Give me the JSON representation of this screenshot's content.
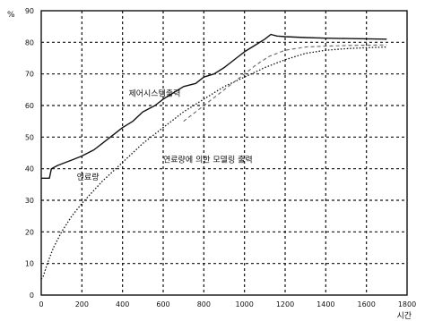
{
  "chart_data": {
    "type": "line",
    "title": "",
    "xlabel": "시간",
    "ylabel": "%",
    "xlim": [
      0,
      1800
    ],
    "ylim": [
      0,
      90
    ],
    "xticks": [
      0,
      200,
      400,
      600,
      800,
      1000,
      1200,
      1400,
      1600,
      1800
    ],
    "yticks": [
      0,
      10,
      20,
      30,
      40,
      50,
      60,
      70,
      80,
      90
    ],
    "grid": true,
    "series": [
      {
        "name": "제어시스템출력",
        "color": "#111111",
        "style": "solid",
        "width": 1.4,
        "x": [
          0,
          40,
          50,
          80,
          120,
          160,
          200,
          260,
          300,
          360,
          400,
          450,
          500,
          560,
          600,
          650,
          700,
          760,
          800,
          850,
          900,
          960,
          1000,
          1050,
          1100,
          1130,
          1160,
          1200,
          1300,
          1400,
          1500,
          1600,
          1700
        ],
        "y": [
          37,
          37,
          40,
          41,
          42,
          43,
          44,
          46,
          48,
          51,
          53,
          55,
          58,
          60,
          62,
          64,
          66,
          67,
          69,
          70,
          72,
          75,
          77,
          79,
          81,
          82.5,
          82,
          81.8,
          81.5,
          81.3,
          81.2,
          81.1,
          81
        ]
      },
      {
        "name": "연료량",
        "color": "#111111",
        "style": "dotted",
        "width": 1.3,
        "x": [
          0,
          10,
          30,
          60,
          100,
          150,
          200,
          300,
          400,
          500,
          600,
          700,
          800,
          900,
          1000,
          1100,
          1200,
          1300,
          1400,
          1500,
          1600,
          1700
        ],
        "y": [
          5,
          6,
          10,
          15,
          20,
          25,
          29,
          36,
          42,
          48,
          53,
          58,
          62,
          66,
          69,
          72,
          74.5,
          76.5,
          77.5,
          78,
          78.3,
          78.5
        ]
      },
      {
        "name": "연료량에 의한 모델링 출력",
        "color": "#666666",
        "style": "dashed",
        "width": 1.1,
        "x": [
          700,
          760,
          820,
          880,
          940,
          1000,
          1060,
          1120,
          1200,
          1300,
          1400,
          1500,
          1600,
          1700
        ],
        "y": [
          55,
          58,
          61,
          64,
          67,
          70,
          73,
          75.5,
          77.5,
          78.5,
          78.8,
          79,
          79.1,
          79.2
        ]
      }
    ],
    "annotations": [
      {
        "text": "제어시스템출력",
        "x": 430,
        "y": 63
      },
      {
        "text": "연료량에 의한 모델링 출력",
        "x": 600,
        "y": 42
      },
      {
        "text": "연료량",
        "x": 175,
        "y": 36.5
      }
    ]
  }
}
